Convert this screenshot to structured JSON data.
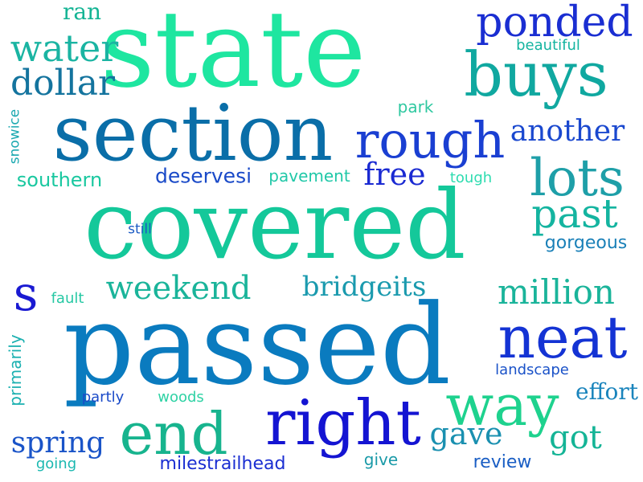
{
  "words": [
    {
      "text": "state",
      "color": "#1ee6a0"
    },
    {
      "text": "covered",
      "color": "#14c89a"
    },
    {
      "text": "passed",
      "color": "#0a7bbf"
    },
    {
      "text": "section",
      "color": "#0a6ea8"
    },
    {
      "text": "buys",
      "color": "#10a8a0"
    },
    {
      "text": "ponded",
      "color": "#1a2ed2"
    },
    {
      "text": "rough",
      "color": "#1a3fd2"
    },
    {
      "text": "lots",
      "color": "#1e9fa8"
    },
    {
      "text": "past",
      "color": "#14b4a0"
    },
    {
      "text": "neat",
      "color": "#1433d4"
    },
    {
      "text": "right",
      "color": "#1414d2"
    },
    {
      "text": "end",
      "color": "#17b48e"
    },
    {
      "text": "way",
      "color": "#1ed28e"
    },
    {
      "text": "s",
      "color": "#1a1ad2"
    },
    {
      "text": "water",
      "color": "#1ab4a2"
    },
    {
      "text": "dollar",
      "color": "#14749e"
    },
    {
      "text": "ran",
      "color": "#14b494"
    },
    {
      "text": "beautiful",
      "color": "#14b4a0"
    },
    {
      "text": "park",
      "color": "#2ec8a0"
    },
    {
      "text": "another",
      "color": "#1a48cf"
    },
    {
      "text": "snowice",
      "color": "#1aa8b0"
    },
    {
      "text": "southern",
      "color": "#1ac8a0"
    },
    {
      "text": "deservesi",
      "color": "#1a4ac8"
    },
    {
      "text": "pavement",
      "color": "#20c8a8"
    },
    {
      "text": "free",
      "color": "#1a2ad2"
    },
    {
      "text": "tough",
      "color": "#2edcb0"
    },
    {
      "text": "still",
      "color": "#1a5ac4"
    },
    {
      "text": "gorgeous",
      "color": "#1a80b8"
    },
    {
      "text": "weekend",
      "color": "#1ab49a"
    },
    {
      "text": "bridgeits",
      "color": "#1a9aae"
    },
    {
      "text": "million",
      "color": "#1ab49a"
    },
    {
      "text": "fault",
      "color": "#26c8a4"
    },
    {
      "text": "primarily",
      "color": "#1ab0b0"
    },
    {
      "text": "landscape",
      "color": "#1a52c8"
    },
    {
      "text": "partly",
      "color": "#1a4ac8"
    },
    {
      "text": "woods",
      "color": "#2ed2a4"
    },
    {
      "text": "effort",
      "color": "#1a84bc"
    },
    {
      "text": "spring",
      "color": "#1a54c8"
    },
    {
      "text": "gave",
      "color": "#1a90b0"
    },
    {
      "text": "got",
      "color": "#14b496"
    },
    {
      "text": "going",
      "color": "#1ab8b0"
    },
    {
      "text": "milestrailhead",
      "color": "#1a2ed2"
    },
    {
      "text": "give",
      "color": "#1a9aa8"
    },
    {
      "text": "review",
      "color": "#1a5ec4"
    }
  ]
}
